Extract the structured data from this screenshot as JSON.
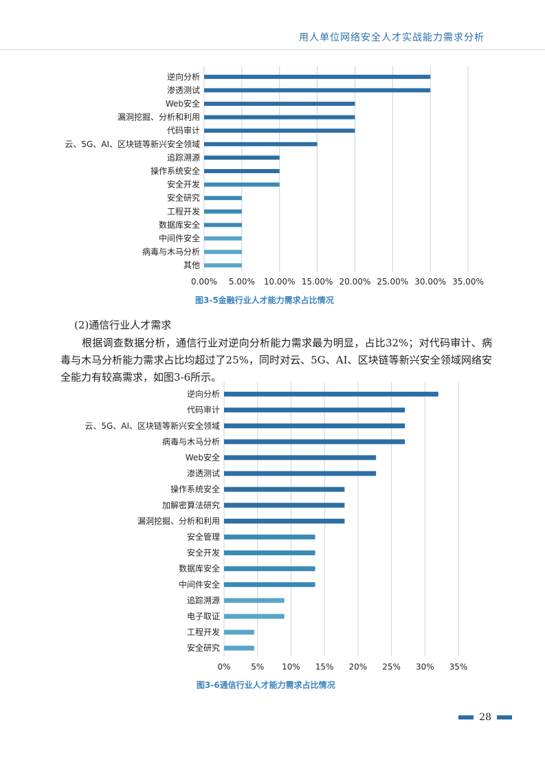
{
  "header": {
    "title": "用人单位网络安全人才实战能力需求分析"
  },
  "section": {
    "heading": "(2)通信行业人才需求",
    "paragraph": "根据调查数据分析，通信行业对逆向分析能力需求最为明显，占比32%；对代码审计、病毒与木马分析能力需求占比均超过了25%，同时对云、5G、AI、区块链等新兴安全领域网络安全能力有较高需求，如图3-6所示。"
  },
  "page": {
    "number": "28"
  },
  "colors": {
    "bar_dark": "#2d6ea3",
    "bar_mid": "#3a89b5",
    "bar_light": "#5aa5c6",
    "grid": "#c5d4e0",
    "caption": "#3b84bd"
  },
  "chart_data": [
    {
      "type": "bar",
      "orientation": "horizontal",
      "caption": "图3-5金融行业人才能力需求占比情况",
      "categories": [
        "逆向分析",
        "渗透测试",
        "Web安全",
        "漏洞挖掘、分析和利用",
        "代码审计",
        "云、5G、AI、区块链等新兴安全领域",
        "追踪溯源",
        "操作系统安全",
        "安全开发",
        "安全研究",
        "工程开发",
        "数据库安全",
        "中间件安全",
        "病毒与木马分析",
        "其他"
      ],
      "values": [
        0.3,
        0.3,
        0.2,
        0.2,
        0.2,
        0.15,
        0.1,
        0.1,
        0.1,
        0.05,
        0.05,
        0.05,
        0.05,
        0.05,
        0.05
      ],
      "xlim": [
        0,
        0.35
      ],
      "tick_labels": [
        "0.00%",
        "5.00%",
        "10.00%",
        "15.00%",
        "20.00%",
        "25.00%",
        "30.00%",
        "35.00%"
      ],
      "grid": true
    },
    {
      "type": "bar",
      "orientation": "horizontal",
      "caption": "图3-6通信行业人才能力需求占比情况",
      "categories": [
        "逆向分析",
        "代码审计",
        "云、5G、AI、区块链等新兴安全领域",
        "病毒与木马分析",
        "Web安全",
        "渗透测试",
        "操作系统安全",
        "加解密算法研究",
        "漏洞挖掘、分析和利用",
        "安全管理",
        "安全开发",
        "数据库安全",
        "中间件安全",
        "追踪溯源",
        "电子取证",
        "工程开发",
        "安全研究"
      ],
      "values": [
        0.32,
        0.27,
        0.27,
        0.27,
        0.227,
        0.227,
        0.18,
        0.18,
        0.18,
        0.136,
        0.136,
        0.136,
        0.136,
        0.09,
        0.09,
        0.045,
        0.045
      ],
      "xlim": [
        0,
        0.35
      ],
      "tick_labels": [
        "0%",
        "5%",
        "10%",
        "15%",
        "20%",
        "25%",
        "30%",
        "35%"
      ],
      "grid": true
    }
  ]
}
